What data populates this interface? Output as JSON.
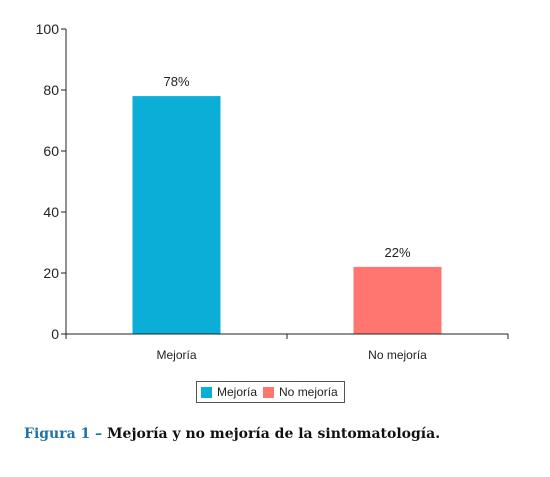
{
  "chart_data": {
    "type": "bar",
    "categories": [
      "Mejoría",
      "No mejoría"
    ],
    "values": [
      78,
      22
    ],
    "data_labels": [
      "78%",
      "22%"
    ],
    "colors": [
      "#0aaed6",
      "#ff7670"
    ],
    "ylim": [
      0,
      100
    ],
    "yticks": [
      0,
      20,
      40,
      60,
      80,
      100
    ],
    "xlabel": "",
    "ylabel": "",
    "grid": false,
    "legend": {
      "placement": "bottom-center",
      "entries": [
        {
          "label": "Mejoría",
          "color": "#0aaed6"
        },
        {
          "label": "No mejoría",
          "color": "#ff7670"
        }
      ]
    }
  },
  "caption": {
    "prefix": "Figura 1 –",
    "text": "Mejoría y no mejoría de la sintomatología."
  }
}
